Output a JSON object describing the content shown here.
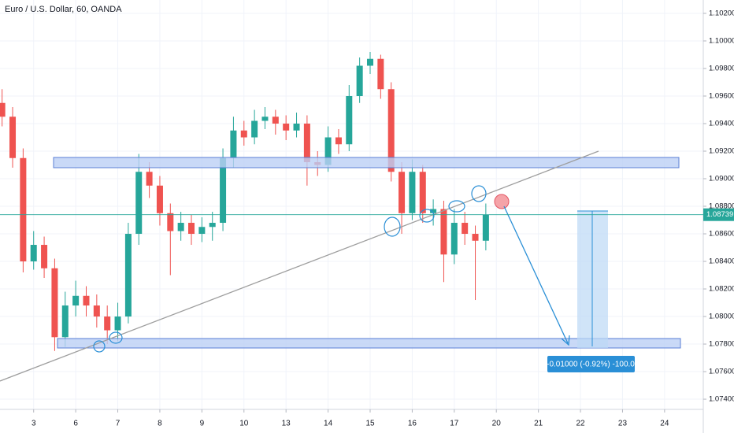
{
  "chart_data": {
    "type": "candlestick",
    "title": "Euro / U.S. Dollar, 60, OANDA",
    "x": [
      -0.75,
      -0.5,
      -0.25,
      0,
      0.25,
      0.5,
      0.75,
      1,
      1.25,
      1.5,
      1.75,
      2,
      2.25,
      2.5,
      2.75,
      3,
      3.25,
      3.5,
      3.75,
      4,
      4.25,
      4.5,
      4.75,
      5,
      5.25,
      5.5,
      5.75,
      6,
      6.25,
      6.5,
      6.75,
      7,
      7.25,
      7.5,
      7.75,
      8,
      8.25,
      8.5,
      8.75,
      9,
      9.25,
      9.5,
      9.75,
      10,
      10.25,
      10.5,
      10.75
    ],
    "open": [
      1.0955,
      1.0945,
      1.0915,
      1.084,
      1.0852,
      1.0835,
      1.0785,
      1.0808,
      1.0815,
      1.0808,
      1.08,
      1.079,
      1.08,
      1.086,
      1.0905,
      1.0895,
      1.0875,
      1.0862,
      1.0868,
      1.086,
      1.0865,
      1.0868,
      1.0915,
      1.0935,
      1.093,
      1.0942,
      1.0945,
      1.094,
      1.0935,
      1.094,
      1.0912,
      1.091,
      1.093,
      1.0925,
      1.096,
      1.0982,
      1.0987,
      1.0965,
      1.0905,
      1.0875,
      1.0905,
      1.0875,
      1.0878,
      1.0845,
      1.0868,
      1.086,
      1.0855
    ],
    "high": [
      1.0965,
      1.0952,
      1.0922,
      1.0862,
      1.0858,
      1.0842,
      1.0818,
      1.0826,
      1.0822,
      1.0816,
      1.0808,
      1.081,
      1.0868,
      1.0918,
      1.0912,
      1.0902,
      1.0882,
      1.0876,
      1.0874,
      1.0872,
      1.0876,
      1.0922,
      1.0945,
      1.0942,
      1.095,
      1.0952,
      1.095,
      1.0946,
      1.0948,
      1.0946,
      1.092,
      1.0938,
      1.0936,
      1.0968,
      1.0988,
      1.0992,
      1.099,
      1.097,
      1.0912,
      1.0914,
      1.091,
      1.0885,
      1.0884,
      1.0878,
      1.0876,
      1.0866,
      1.0882
    ],
    "low": [
      1.0938,
      1.0908,
      1.0832,
      1.0834,
      1.0828,
      1.0775,
      1.0778,
      1.08,
      1.08,
      1.0792,
      1.078,
      1.0782,
      1.0795,
      1.0852,
      1.0886,
      1.0866,
      1.083,
      1.0855,
      1.0852,
      1.0854,
      1.0855,
      1.0862,
      1.0908,
      1.0924,
      1.0925,
      1.0936,
      1.0932,
      1.0928,
      1.093,
      1.0895,
      1.0902,
      1.0905,
      1.0918,
      1.092,
      1.0955,
      1.0976,
      1.0958,
      1.0898,
      1.086,
      1.087,
      1.0868,
      1.0866,
      1.0825,
      1.0838,
      1.0852,
      1.0812,
      1.0848
    ],
    "close": [
      1.0945,
      1.0915,
      1.084,
      1.0852,
      1.0835,
      1.0785,
      1.0808,
      1.0815,
      1.0808,
      1.08,
      1.079,
      1.08,
      1.086,
      1.0905,
      1.0895,
      1.0875,
      1.0862,
      1.0868,
      1.086,
      1.0865,
      1.0868,
      1.0915,
      1.0935,
      1.093,
      1.0942,
      1.0945,
      1.094,
      1.0935,
      1.094,
      1.0912,
      1.091,
      1.093,
      1.0925,
      1.096,
      1.0982,
      1.0987,
      1.0965,
      1.0905,
      1.0875,
      1.0905,
      1.0875,
      1.0878,
      1.0845,
      1.0868,
      1.086,
      1.0855,
      1.0874
    ],
    "up_color": "#26a69a",
    "down_color": "#ef5350",
    "xlim": [
      -0.8,
      15.92
    ],
    "xticks": [
      {
        "value": 0,
        "label": "3"
      },
      {
        "value": 1,
        "label": "6"
      },
      {
        "value": 2,
        "label": "7"
      },
      {
        "value": 3,
        "label": "8"
      },
      {
        "value": 4,
        "label": "9"
      },
      {
        "value": 5,
        "label": "10"
      },
      {
        "value": 6,
        "label": "13"
      },
      {
        "value": 7,
        "label": "14"
      },
      {
        "value": 8,
        "label": "15"
      },
      {
        "value": 9,
        "label": "16"
      },
      {
        "value": 10,
        "label": "17"
      },
      {
        "value": 11,
        "label": "20"
      },
      {
        "value": 12,
        "label": "21"
      },
      {
        "value": 13,
        "label": "22"
      },
      {
        "value": 14,
        "label": "23"
      },
      {
        "value": 15,
        "label": "24"
      }
    ],
    "ylim": [
      1.07326,
      1.10297
    ],
    "yticks": [
      {
        "value": 1.102,
        "label": "1.10200"
      },
      {
        "value": 1.1,
        "label": "1.10000"
      },
      {
        "value": 1.098,
        "label": "1.09800"
      },
      {
        "value": 1.096,
        "label": "1.09600"
      },
      {
        "value": 1.094,
        "label": "1.09400"
      },
      {
        "value": 1.092,
        "label": "1.09200"
      },
      {
        "value": 1.09,
        "label": "1.09000"
      },
      {
        "value": 1.088,
        "label": "1.08800"
      },
      {
        "value": 1.086,
        "label": "1.08600"
      },
      {
        "value": 1.084,
        "label": "1.08400"
      },
      {
        "value": 1.082,
        "label": "1.08200"
      },
      {
        "value": 1.08,
        "label": "1.08000"
      },
      {
        "value": 1.078,
        "label": "1.07800"
      },
      {
        "value": 1.076,
        "label": "1.07600"
      },
      {
        "value": 1.074,
        "label": "1.07400"
      }
    ],
    "grid": true,
    "last_price": {
      "value": 1.08739,
      "label": "1.08739"
    },
    "measure_label": "-0.01000 (-0.92%) -100.0"
  }
}
